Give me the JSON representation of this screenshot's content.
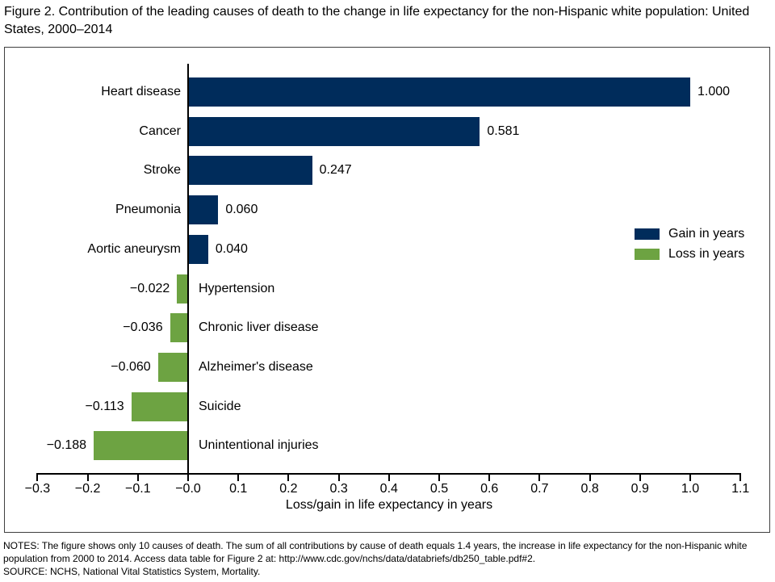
{
  "title": "Figure 2. Contribution of the leading causes of death to the change in life expectancy for the non-Hispanic white population: United States, 2000–2014",
  "chart_data": {
    "type": "bar",
    "orientation": "horizontal",
    "categories": [
      "Heart disease",
      "Cancer",
      "Stroke",
      "Pneumonia",
      "Aortic aneurysm",
      "Hypertension",
      "Chronic liver disease",
      "Alzheimer's disease",
      "Suicide",
      "Unintentional injuries"
    ],
    "values": [
      1.0,
      0.581,
      0.247,
      0.06,
      0.04,
      -0.022,
      -0.036,
      -0.06,
      -0.113,
      -0.188
    ],
    "value_labels": [
      "1.000",
      "0.581",
      "0.247",
      "0.060",
      "0.040",
      "−0.022",
      "−0.036",
      "−0.060",
      "−0.113",
      "−0.188"
    ],
    "title": "",
    "xlabel": "Loss/gain in life expectancy in years",
    "ylabel": "",
    "xlim": [
      -0.3,
      1.1
    ],
    "xticks": [
      -0.3,
      -0.2,
      -0.1,
      0.0,
      0.1,
      0.2,
      0.3,
      0.4,
      0.5,
      0.6,
      0.7,
      0.8,
      0.9,
      1.0,
      1.1
    ],
    "xtick_labels": [
      "−0.3",
      "−0.2",
      "−0.1",
      "−0.0",
      "0.1",
      "0.2",
      "0.3",
      "0.4",
      "0.5",
      "0.6",
      "0.7",
      "0.8",
      "0.9",
      "1.0",
      "1.1"
    ],
    "grid": false,
    "legend": {
      "position": "right",
      "gain_label": "Gain in years",
      "loss_label": "Loss in years"
    },
    "colors": {
      "gain": "#002c5b",
      "loss": "#6da342"
    }
  },
  "notes": "NOTES: The figure shows only 10 causes of death. The sum of all contributions by cause of death equals 1.4 years, the increase in life expectancy for the non-Hispanic white population from 2000 to 2014. Access data table for Figure 2 at: http://www.cdc.gov/nchs/data/databriefs/db250_table.pdf#2.",
  "source": "SOURCE: NCHS, National Vital Statistics System, Mortality."
}
